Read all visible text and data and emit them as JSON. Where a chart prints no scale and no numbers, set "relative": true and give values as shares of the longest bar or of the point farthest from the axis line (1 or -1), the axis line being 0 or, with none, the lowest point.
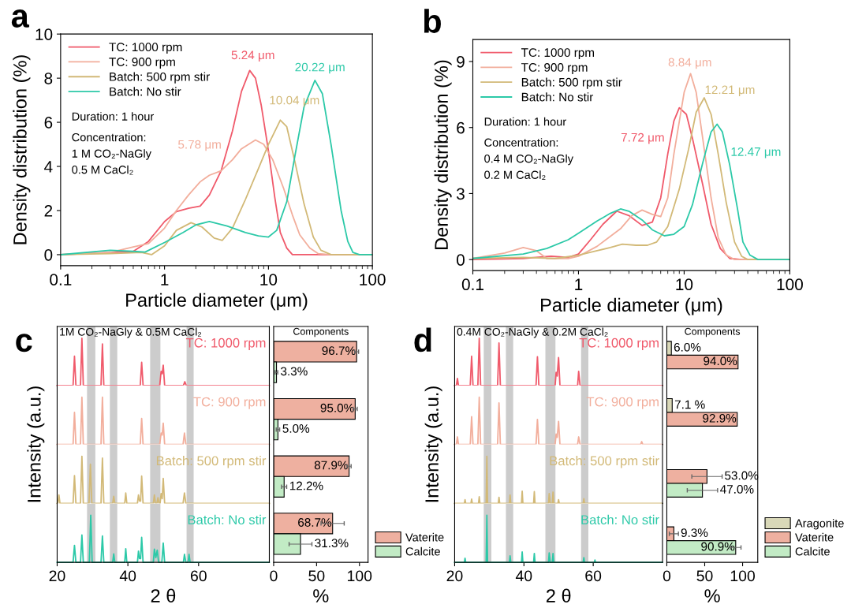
{
  "chart_data": [
    {
      "type": "line",
      "title": "a",
      "xlabel": "Particle diameter (μm)",
      "ylabel": "Density distribution (%)",
      "log": "x",
      "xlim": [
        0.1,
        100
      ],
      "xticks": [
        0.1,
        1,
        10,
        100
      ],
      "ylim": [
        -0.5,
        10
      ],
      "yticks": [
        0,
        2,
        4,
        6,
        8,
        10
      ],
      "legend": "top left",
      "series": [
        {
          "name": "TC: 1000 rpm",
          "color": "#f05a6b",
          "x": [
            0.1,
            0.3,
            0.5,
            0.7,
            1.0,
            1.3,
            1.7,
            2.2,
            2.7,
            3.5,
            4.5,
            5.5,
            6.6,
            7.5,
            8.5,
            10,
            11.5,
            13,
            15,
            17,
            100
          ],
          "values": [
            0,
            0.1,
            0.15,
            0.6,
            1.5,
            1.95,
            2.1,
            2.2,
            2.7,
            3.8,
            5.6,
            7.4,
            8.35,
            8.0,
            6.8,
            4.7,
            2.6,
            1.0,
            0.3,
            0,
            0
          ]
        },
        {
          "name": "TC: 900 rpm",
          "color": "#f2ae9c",
          "x": [
            0.1,
            0.3,
            0.5,
            0.7,
            1,
            1.3,
            1.7,
            2.2,
            2.7,
            3.5,
            4.5,
            5.5,
            7.5,
            9,
            11,
            14,
            17,
            20,
            25,
            30,
            40,
            100
          ],
          "values": [
            0,
            0.1,
            0.35,
            0.5,
            1.2,
            2.0,
            2.7,
            3.3,
            3.6,
            3.8,
            4.3,
            4.8,
            5.2,
            5.0,
            4.3,
            3.0,
            1.8,
            0.9,
            0.3,
            0.05,
            0,
            0
          ]
        },
        {
          "name": "Batch: 500 rpm stir",
          "color": "#d2b977",
          "x": [
            0.1,
            0.3,
            0.6,
            0.75,
            1,
            1.3,
            1.8,
            2.3,
            3,
            3.6,
            4.5,
            6,
            8,
            10,
            13,
            15,
            18,
            22,
            27,
            32,
            40,
            100
          ],
          "values": [
            0,
            0.05,
            0.1,
            0.0,
            0.4,
            1.1,
            1.45,
            1.25,
            0.75,
            0.65,
            1.2,
            2.5,
            3.9,
            5.0,
            6.1,
            5.8,
            4.2,
            2.3,
            0.8,
            0.2,
            0,
            0
          ]
        },
        {
          "name": "Batch: No stir",
          "color": "#2cc9a8",
          "x": [
            0.1,
            0.3,
            0.5,
            0.65,
            1,
            1.5,
            2,
            2.7,
            4,
            6,
            8,
            10,
            12,
            15,
            18,
            22,
            28,
            33,
            40,
            50,
            58,
            65,
            75,
            100
          ],
          "values": [
            0,
            0.2,
            0.15,
            0.12,
            0.55,
            1.0,
            1.35,
            1.5,
            1.3,
            1.0,
            0.85,
            0.8,
            1.1,
            2.4,
            4.5,
            6.7,
            7.9,
            7.3,
            5.0,
            2.0,
            0.6,
            0.1,
            0,
            0
          ]
        }
      ],
      "annotations": [
        "5.24 μm",
        "5.78 μm",
        "10.04 μm",
        "20.22 μm",
        "Duration: 1 hour",
        "Concentration:",
        "1 M CO₂-NaGly",
        "0.5 M CaCl₂"
      ]
    },
    {
      "type": "line",
      "title": "b",
      "xlabel": "Particle diameter (μm)",
      "ylabel": "Density distribution (%)",
      "log": "x",
      "xlim": [
        0.1,
        100
      ],
      "xticks": [
        0.1,
        1,
        10,
        100
      ],
      "ylim": [
        -0.5,
        10
      ],
      "yticks": [
        0,
        3,
        6,
        9
      ],
      "legend": "top left",
      "series": [
        {
          "name": "TC: 1000 rpm",
          "color": "#f05a6b",
          "x": [
            0.1,
            0.3,
            0.55,
            0.8,
            1,
            1.3,
            1.7,
            2.3,
            3,
            4,
            5,
            6,
            7,
            8,
            9,
            10.5,
            12,
            15,
            18,
            22,
            27,
            35,
            100
          ],
          "values": [
            0,
            0.05,
            0.15,
            0.1,
            0.25,
            0.9,
            1.6,
            2.2,
            2.0,
            1.55,
            1.7,
            2.8,
            4.8,
            6.3,
            6.9,
            6.6,
            5.5,
            3.4,
            1.6,
            0.5,
            0.05,
            0,
            0
          ]
        },
        {
          "name": "TC: 900 rpm",
          "color": "#f2ae9c",
          "x": [
            0.1,
            0.2,
            0.3,
            0.4,
            0.5,
            0.8,
            1,
            1.5,
            2.5,
            3.2,
            4,
            5,
            6,
            7,
            8,
            10,
            11.5,
            13,
            15,
            18,
            21,
            25,
            30,
            100
          ],
          "values": [
            0.05,
            0.3,
            0.55,
            0.4,
            0.05,
            0.05,
            0.15,
            0.6,
            1.4,
            2.0,
            2.25,
            2.05,
            1.95,
            2.8,
            4.8,
            7.6,
            8.45,
            7.6,
            5.5,
            2.8,
            1.0,
            0.2,
            0,
            0
          ]
        },
        {
          "name": "Batch: 500 rpm stir",
          "color": "#d2b977",
          "x": [
            0.1,
            0.3,
            0.6,
            1,
            1.5,
            2,
            2.6,
            3.5,
            4.5,
            5.5,
            7,
            9,
            11,
            13,
            15.5,
            18,
            21,
            25,
            30,
            35,
            40,
            100
          ],
          "values": [
            0.05,
            0.1,
            0.05,
            0.2,
            0.4,
            0.55,
            0.7,
            0.65,
            0.65,
            0.8,
            1.5,
            3.2,
            5.0,
            6.7,
            7.35,
            6.6,
            4.8,
            2.6,
            0.8,
            0.15,
            0,
            0
          ]
        },
        {
          "name": "Batch: No stir",
          "color": "#2cc9a8",
          "x": [
            0.1,
            0.3,
            0.5,
            0.8,
            1,
            1.5,
            2,
            2.5,
            3,
            4,
            5,
            6.5,
            8,
            10,
            12,
            15,
            18,
            20.5,
            23,
            27,
            32,
            36,
            42,
            50,
            100
          ],
          "values": [
            0.05,
            0.25,
            0.5,
            0.9,
            1.2,
            1.75,
            2.1,
            2.3,
            2.2,
            1.8,
            1.35,
            1.08,
            1.15,
            1.5,
            2.5,
            4.4,
            5.8,
            6.15,
            5.8,
            4.3,
            2.3,
            0.8,
            0.2,
            0,
            0
          ]
        }
      ],
      "annotations": [
        "7.72 μm",
        "8.84 μm",
        "12.21 μm",
        "12.47 μm",
        "Duration: 1 hour",
        "Concentration:",
        "0.4 M CO₂-NaGly",
        "0.2 M CaCl₂"
      ]
    },
    {
      "type": "line",
      "relative": true,
      "title": "c",
      "subtitle": "1M CO₂-NaGly & 0.5M CaCl₂",
      "xlim": [
        20,
        80
      ],
      "xticks": [
        20,
        40,
        60
      ],
      "tick_labels": false,
      "bands": [
        {
          "axis": "x",
          "from": 28.45,
          "to": 30.8,
          "color": "#cccccc"
        },
        {
          "axis": "x",
          "from": 34.9,
          "to": 37.0,
          "color": "#cccccc"
        },
        {
          "axis": "x",
          "from": 46.3,
          "to": 49.2,
          "color": "#cccccc"
        },
        {
          "axis": "x",
          "from": 56.6,
          "to": 58.6,
          "color": "#cccccc"
        }
      ],
      "series": [
        {
          "name": "TC: 1000 rpm",
          "color": "#f05a6b",
          "x": [
            20,
            24.5,
            24.9,
            25.3,
            26.6,
            27.0,
            27.4,
            32.4,
            32.8,
            33.2,
            43.5,
            43.9,
            44.3,
            49.0,
            49.4,
            49.7,
            50.0,
            50.4,
            55.7,
            56.1,
            56.5,
            80
          ],
          "values": [
            0,
            0,
            0.62,
            0,
            0,
            1.0,
            0,
            0,
            0.88,
            0,
            0,
            0.49,
            0,
            0,
            0.3,
            0.25,
            0.43,
            0,
            0,
            0.08,
            0,
            0
          ]
        }
      ]
    },
    {
      "type": "line",
      "relative": true,
      "ylabel": "Intensity (a.u.)",
      "xlim": [
        20,
        80
      ],
      "xticks": [
        20,
        40,
        60
      ],
      "tick_labels": false,
      "bands": [
        {
          "axis": "x",
          "from": 28.45,
          "to": 30.8,
          "color": "#cccccc"
        },
        {
          "axis": "x",
          "from": 34.9,
          "to": 37.0,
          "color": "#cccccc"
        },
        {
          "axis": "x",
          "from": 46.3,
          "to": 49.2,
          "color": "#cccccc"
        },
        {
          "axis": "x",
          "from": 56.6,
          "to": 58.6,
          "color": "#cccccc"
        }
      ],
      "series": [
        {
          "name": "TC: 900 rpm",
          "color": "#f2ae9c",
          "x": [
            20,
            24.5,
            24.9,
            25.3,
            26.6,
            27.0,
            27.4,
            32.4,
            32.8,
            33.2,
            43.5,
            43.9,
            44.3,
            49.0,
            49.4,
            49.7,
            50.0,
            50.4,
            55.6,
            56.0,
            56.4,
            80
          ],
          "values": [
            0,
            0,
            0.68,
            0,
            0,
            1.0,
            0,
            0,
            1.0,
            0,
            0,
            0.55,
            0,
            0,
            0.24,
            0.2,
            0.45,
            0,
            0,
            0.24,
            0,
            0
          ]
        }
      ]
    },
    {
      "type": "line",
      "relative": true,
      "xlim": [
        20,
        80
      ],
      "xticks": [
        20,
        40,
        60
      ],
      "tick_labels": false,
      "bands": [
        {
          "axis": "x",
          "from": 28.45,
          "to": 30.8,
          "color": "#cccccc"
        },
        {
          "axis": "x",
          "from": 34.9,
          "to": 37.0,
          "color": "#cccccc"
        },
        {
          "axis": "x",
          "from": 46.3,
          "to": 49.2,
          "color": "#cccccc"
        },
        {
          "axis": "x",
          "from": 56.6,
          "to": 58.6,
          "color": "#cccccc"
        }
      ],
      "series": [
        {
          "name": "Batch: 500 rpm stir",
          "color": "#d2b977",
          "x": [
            20,
            20.2,
            20.5,
            20.8,
            24.5,
            24.9,
            25.3,
            26.6,
            27.0,
            27.4,
            29.0,
            29.4,
            29.8,
            32.4,
            32.8,
            33.2,
            35.7,
            36.0,
            36.3,
            39.1,
            39.4,
            39.7,
            42.7,
            43.0,
            43.3,
            43.6,
            43.9,
            44.3,
            47.2,
            47.5,
            47.8,
            48.2,
            48.5,
            48.8,
            49.1,
            49.4,
            49.7,
            50.0,
            50.4,
            55.6,
            56.0,
            56.4,
            80
          ],
          "values": [
            0,
            0,
            0.18,
            0,
            0,
            0.59,
            0,
            0,
            1.0,
            0,
            0,
            0.83,
            0,
            0,
            0.96,
            0,
            0,
            0.15,
            0,
            0,
            0.22,
            0,
            0,
            0.18,
            0.05,
            0.05,
            0.58,
            0,
            0,
            0.18,
            0,
            0,
            0.12,
            0,
            0,
            0.21,
            0.1,
            0.53,
            0,
            0,
            0.22,
            0,
            0
          ]
        }
      ]
    },
    {
      "type": "line",
      "relative": true,
      "xlabel": "2 θ",
      "xlim": [
        20,
        80
      ],
      "xticks": [
        20,
        40,
        60
      ],
      "tick_labels": "x",
      "bands": [
        {
          "axis": "x",
          "from": 28.45,
          "to": 30.8,
          "color": "#cccccc"
        },
        {
          "axis": "x",
          "from": 34.9,
          "to": 37.0,
          "color": "#cccccc"
        },
        {
          "axis": "x",
          "from": 46.3,
          "to": 49.2,
          "color": "#cccccc"
        },
        {
          "axis": "x",
          "from": 56.6,
          "to": 58.6,
          "color": "#cccccc"
        }
      ],
      "series": [
        {
          "name": "Batch: No stir",
          "color": "#2cc9a8",
          "x": [
            20,
            24.5,
            24.9,
            25.3,
            26.6,
            27.0,
            27.4,
            29.1,
            29.5,
            29.9,
            32.4,
            32.8,
            33.2,
            35.7,
            36.0,
            36.3,
            39.1,
            39.4,
            39.7,
            42.7,
            43.0,
            43.3,
            43.6,
            43.9,
            44.3,
            47.2,
            47.5,
            47.9,
            48.3,
            48.7,
            49.6,
            50.0,
            50.4,
            55.7,
            56.0,
            56.4,
            57.0,
            57.3,
            57.6,
            80
          ],
          "values": [
            0,
            0,
            0.36,
            0,
            0,
            0.58,
            0,
            0,
            1.0,
            0,
            0,
            0.56,
            0,
            0,
            0.18,
            0,
            0,
            0.29,
            0,
            0,
            0.24,
            0.08,
            0.08,
            0.53,
            0,
            0,
            0.28,
            0.1,
            0.26,
            0,
            0,
            0.41,
            0,
            0,
            0.17,
            0,
            0,
            0.17,
            0,
            0
          ]
        }
      ]
    },
    {
      "type": "bar",
      "orientation": "horizontal",
      "title": "Components",
      "xlabel": "%",
      "xlim": [
        0,
        110
      ],
      "xticks": [
        0,
        50,
        100
      ],
      "tick_labels": "x",
      "legend": "bottom right",
      "categories": [
        null,
        null,
        null,
        null
      ],
      "series": [
        {
          "name": "Vaterite",
          "color": "#eeb0a0",
          "values": [
            96.7,
            95.0,
            87.9,
            68.7
          ],
          "errors": [
            2.3,
            2.4,
            2.4,
            13.5
          ],
          "value_labels": [
            "96.7%",
            "95.0%",
            "87.9%",
            "68.7%"
          ]
        },
        {
          "name": "Calcite",
          "color": "#c2ebc5",
          "values": [
            3.3,
            5.0,
            12.2,
            31.3
          ],
          "errors": [
            1.5,
            2,
            3,
            13.3
          ],
          "value_labels": [
            "3.3%",
            "5.0%",
            "12.2%",
            "31.3%"
          ]
        }
      ]
    },
    {
      "type": "line",
      "relative": true,
      "title": "d",
      "subtitle": "0.4M CO₂-NaGly & 0.2M CaCl₂",
      "xlim": [
        20,
        80
      ],
      "xticks": [
        20,
        40,
        60
      ],
      "tick_labels": false,
      "bands": [
        {
          "axis": "x",
          "from": 28.4,
          "to": 30.6,
          "color": "#cccccc"
        },
        {
          "axis": "x",
          "from": 34.8,
          "to": 36.9,
          "color": "#cccccc"
        },
        {
          "axis": "x",
          "from": 46.2,
          "to": 49.1,
          "color": "#cccccc"
        },
        {
          "axis": "x",
          "from": 56.5,
          "to": 58.6,
          "color": "#cccccc"
        }
      ],
      "series": [
        {
          "name": "TC: 1000 rpm",
          "color": "#f05a6b",
          "x": [
            20,
            20.5,
            20.8,
            21.1,
            24.5,
            24.9,
            25.3,
            26.7,
            27.1,
            27.5,
            32.4,
            32.8,
            33.2,
            43.5,
            43.9,
            44.3,
            49.0,
            49.3,
            49.6,
            50.0,
            50.4,
            55.5,
            55.8,
            56.2,
            80
          ],
          "values": [
            0,
            0,
            0.15,
            0,
            0,
            0.62,
            0,
            0,
            1.0,
            0,
            0,
            0.9,
            0,
            0,
            0.61,
            0,
            0,
            0.28,
            0.2,
            0.59,
            0,
            0,
            0.3,
            0,
            0
          ]
        }
      ]
    },
    {
      "type": "line",
      "relative": true,
      "ylabel": "Intensity (a.u.)",
      "xlim": [
        20,
        80
      ],
      "xticks": [
        20,
        40,
        60
      ],
      "tick_labels": false,
      "bands": [
        {
          "axis": "x",
          "from": 28.4,
          "to": 30.6,
          "color": "#cccccc"
        },
        {
          "axis": "x",
          "from": 34.8,
          "to": 36.9,
          "color": "#cccccc"
        },
        {
          "axis": "x",
          "from": 46.2,
          "to": 49.1,
          "color": "#cccccc"
        },
        {
          "axis": "x",
          "from": 56.5,
          "to": 58.6,
          "color": "#cccccc"
        }
      ],
      "series": [
        {
          "name": "TC: 900 rpm",
          "color": "#f2ae9c",
          "x": [
            20,
            20.5,
            20.8,
            21.1,
            24.5,
            24.9,
            25.3,
            26.7,
            27.1,
            27.5,
            32.4,
            32.8,
            33.2,
            43.5,
            43.9,
            44.3,
            49.0,
            49.3,
            49.6,
            50.0,
            50.4,
            55.5,
            55.8,
            56.2,
            73.7,
            74.0,
            74.3,
            80
          ],
          "values": [
            0,
            0,
            0.16,
            0,
            0,
            0.59,
            0,
            0,
            1.0,
            0,
            0,
            0.88,
            0,
            0,
            0.53,
            0,
            0,
            0.22,
            0.15,
            0.49,
            0,
            0,
            0.16,
            0,
            0,
            0.06,
            0,
            0
          ]
        }
      ]
    },
    {
      "type": "line",
      "relative": true,
      "xlim": [
        20,
        80
      ],
      "xticks": [
        20,
        40,
        60
      ],
      "tick_labels": false,
      "bands": [
        {
          "axis": "x",
          "from": 28.4,
          "to": 30.6,
          "color": "#cccccc"
        },
        {
          "axis": "x",
          "from": 34.8,
          "to": 36.9,
          "color": "#cccccc"
        },
        {
          "axis": "x",
          "from": 46.2,
          "to": 49.1,
          "color": "#cccccc"
        },
        {
          "axis": "x",
          "from": 56.5,
          "to": 58.6,
          "color": "#cccccc"
        }
      ],
      "series": [
        {
          "name": "Batch: 500 rpm stir",
          "color": "#d2b977",
          "x": [
            20,
            22.8,
            23.0,
            23.2,
            24.7,
            24.9,
            25.1,
            26.9,
            27.1,
            27.3,
            29.1,
            29.3,
            29.5,
            32.6,
            32.8,
            33.0,
            35.8,
            36.0,
            36.2,
            39.3,
            39.5,
            39.7,
            42.8,
            43.0,
            43.2,
            47.1,
            47.3,
            47.6,
            48.2,
            48.4,
            48.6,
            49.8,
            50.0,
            50.2,
            57.1,
            57.3,
            57.5,
            80
          ],
          "values": [
            0,
            0,
            0.08,
            0,
            0,
            0.09,
            0,
            0,
            0.14,
            0,
            0,
            1.0,
            0,
            0,
            0.13,
            0,
            0,
            0.18,
            0,
            0,
            0.26,
            0,
            0,
            0.25,
            0,
            0,
            0.21,
            0,
            0,
            0.24,
            0,
            0,
            0.08,
            0,
            0,
            0.1,
            0,
            0
          ]
        }
      ]
    },
    {
      "type": "line",
      "relative": true,
      "xlabel": "2 θ",
      "xlim": [
        20,
        80
      ],
      "xticks": [
        20,
        40,
        60
      ],
      "tick_labels": "x",
      "bands": [
        {
          "axis": "x",
          "from": 28.4,
          "to": 30.6,
          "color": "#cccccc"
        },
        {
          "axis": "x",
          "from": 34.8,
          "to": 36.9,
          "color": "#cccccc"
        },
        {
          "axis": "x",
          "from": 46.2,
          "to": 49.1,
          "color": "#cccccc"
        },
        {
          "axis": "x",
          "from": 56.5,
          "to": 58.6,
          "color": "#cccccc"
        }
      ],
      "series": [
        {
          "name": "Batch: No stir",
          "color": "#2cc9a8",
          "x": [
            20,
            22.8,
            23.0,
            23.2,
            29.1,
            29.3,
            29.5,
            35.8,
            36.0,
            36.2,
            39.3,
            39.5,
            39.7,
            42.8,
            43.0,
            43.2,
            47.1,
            47.3,
            47.6,
            48.2,
            48.4,
            48.6,
            57.1,
            57.3,
            57.5,
            60.3,
            60.5,
            60.7,
            80
          ],
          "values": [
            0,
            0,
            0.09,
            0,
            0,
            1.0,
            0,
            0,
            0.14,
            0,
            0,
            0.22,
            0,
            0,
            0.19,
            0,
            0,
            0.2,
            0,
            0,
            0.19,
            0,
            0,
            0.1,
            0,
            0,
            0.05,
            0,
            0
          ]
        }
      ]
    },
    {
      "type": "bar",
      "orientation": "horizontal",
      "title": "Components",
      "xlabel": "%",
      "xlim": [
        0,
        120
      ],
      "xticks": [
        0,
        50,
        100
      ],
      "tick_labels": "x",
      "legend": "bottom right",
      "categories": [
        null,
        null,
        null,
        null
      ],
      "series": [
        {
          "name": "Aragonite",
          "color": "#d9d8b8",
          "values": [
            6.0,
            7.1,
            null,
            null
          ],
          "errors": [
            null,
            null,
            null,
            null
          ],
          "value_labels": [
            "6.0%",
            "7.1 %",
            null,
            null
          ]
        },
        {
          "name": "Vaterite",
          "color": "#eeb0a0",
          "values": [
            94.0,
            92.9,
            53.0,
            9.3
          ],
          "errors": [
            null,
            null,
            20,
            6
          ],
          "value_labels": [
            "94.0%",
            "92.9%",
            "53.0%",
            "9.3%"
          ]
        },
        {
          "name": "Calcite",
          "color": "#c2ebc5",
          "values": [
            null,
            null,
            47.0,
            90.9
          ],
          "errors": [
            null,
            null,
            20,
            7
          ],
          "value_labels": [
            null,
            null,
            "47.0%",
            "90.9%"
          ]
        }
      ]
    }
  ]
}
